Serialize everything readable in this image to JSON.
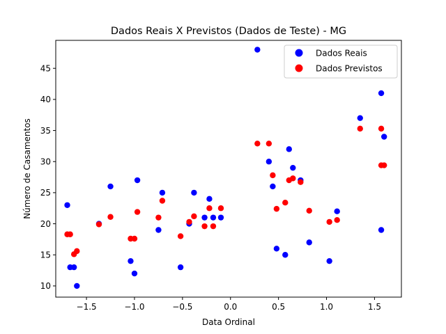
{
  "chart_data": {
    "type": "scatter",
    "title": "Dados Reais X Previstos (Dados de Teste) - MG",
    "xlabel": "Data Ordinal",
    "ylabel": "Número de Casamentos",
    "xlim": [
      -1.82,
      1.78
    ],
    "ylim": [
      8.2,
      49.5
    ],
    "xticks": [
      -1.5,
      -1.0,
      -0.5,
      0.0,
      0.5,
      1.0,
      1.5
    ],
    "xtick_labels": [
      "−1.5",
      "−1.0",
      "−0.5",
      "0.0",
      "0.5",
      "1.0",
      "1.5"
    ],
    "yticks": [
      10,
      15,
      20,
      25,
      30,
      35,
      40,
      45
    ],
    "ytick_labels": [
      "10",
      "15",
      "20",
      "25",
      "30",
      "35",
      "40",
      "45"
    ],
    "legend_position": "top-right",
    "grid": false,
    "series": [
      {
        "name": "Dados Reais",
        "color": "#0000ff",
        "points": [
          [
            -1.7,
            23
          ],
          [
            -1.67,
            13
          ],
          [
            -1.63,
            13
          ],
          [
            -1.6,
            10
          ],
          [
            -1.37,
            20
          ],
          [
            -1.25,
            26
          ],
          [
            -1.04,
            14
          ],
          [
            -1.0,
            12
          ],
          [
            -0.97,
            27
          ],
          [
            -0.75,
            19
          ],
          [
            -0.71,
            25
          ],
          [
            -0.52,
            13
          ],
          [
            -0.43,
            20
          ],
          [
            -0.38,
            25
          ],
          [
            -0.27,
            21
          ],
          [
            -0.22,
            24
          ],
          [
            -0.18,
            21
          ],
          [
            -0.1,
            21
          ],
          [
            0.28,
            48
          ],
          [
            0.4,
            30
          ],
          [
            0.44,
            26
          ],
          [
            0.48,
            16
          ],
          [
            0.57,
            15
          ],
          [
            0.61,
            32
          ],
          [
            0.65,
            29
          ],
          [
            0.73,
            27
          ],
          [
            0.82,
            17
          ],
          [
            1.03,
            14
          ],
          [
            1.11,
            22
          ],
          [
            1.35,
            37
          ],
          [
            1.57,
            41
          ],
          [
            1.57,
            19
          ],
          [
            1.6,
            34
          ]
        ]
      },
      {
        "name": "Dados Previstos",
        "color": "#ff0000",
        "points": [
          [
            -1.7,
            18.3
          ],
          [
            -1.67,
            18.3
          ],
          [
            -1.63,
            15.1
          ],
          [
            -1.6,
            15.6
          ],
          [
            -1.37,
            19.9
          ],
          [
            -1.25,
            21.1
          ],
          [
            -1.04,
            17.6
          ],
          [
            -1.0,
            17.6
          ],
          [
            -0.97,
            21.9
          ],
          [
            -0.75,
            21.0
          ],
          [
            -0.71,
            23.7
          ],
          [
            -0.52,
            18.0
          ],
          [
            -0.43,
            20.3
          ],
          [
            -0.38,
            21.2
          ],
          [
            -0.27,
            19.6
          ],
          [
            -0.22,
            22.5
          ],
          [
            -0.18,
            19.6
          ],
          [
            -0.1,
            22.5
          ],
          [
            0.28,
            32.9
          ],
          [
            0.4,
            32.9
          ],
          [
            0.44,
            27.8
          ],
          [
            0.48,
            22.4
          ],
          [
            0.57,
            23.4
          ],
          [
            0.61,
            27.0
          ],
          [
            0.65,
            27.3
          ],
          [
            0.73,
            26.7
          ],
          [
            0.82,
            22.1
          ],
          [
            1.03,
            20.3
          ],
          [
            1.11,
            20.6
          ],
          [
            1.35,
            35.3
          ],
          [
            1.57,
            35.3
          ],
          [
            1.57,
            29.4
          ],
          [
            1.6,
            29.4
          ]
        ]
      }
    ]
  }
}
